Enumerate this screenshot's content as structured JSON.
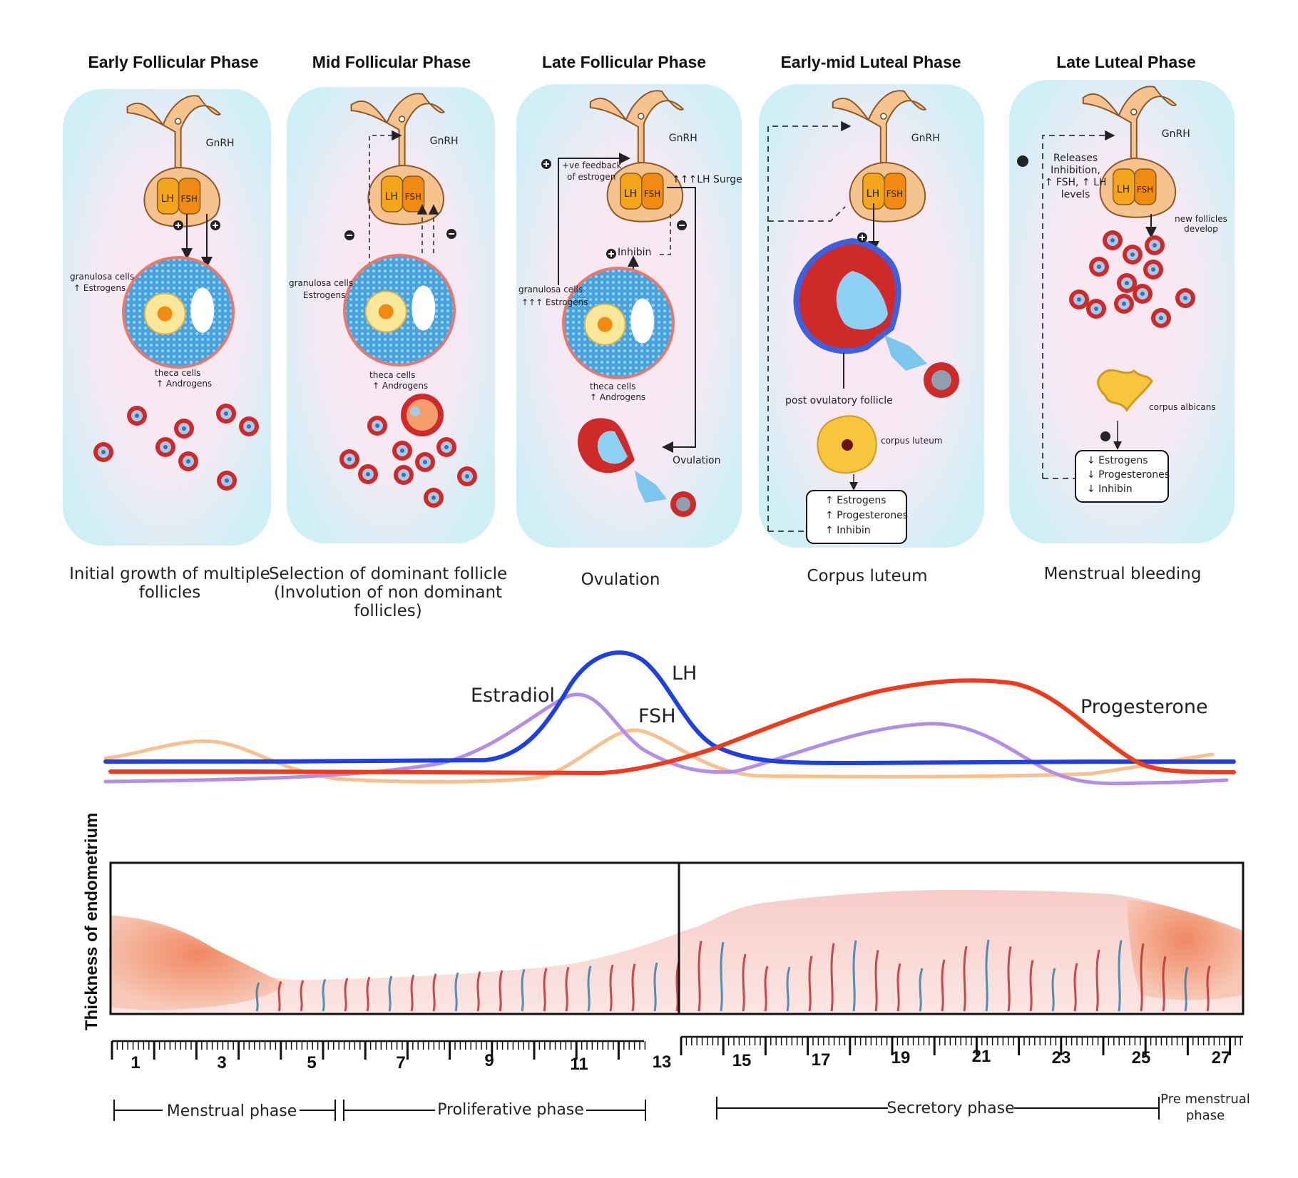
{
  "panels": [
    {
      "title": "Early Follicular Phase",
      "caption": [
        "Initial growth of multiple",
        "follicles"
      ],
      "labels": {
        "gnrh": "GnRH",
        "lh": "LH",
        "fsh": "FSH",
        "granulosa": "granulosa cells",
        "granulosa_sub": "↑ Estrogens",
        "theca": "theca cells",
        "theca_sub": "↑ Androgens"
      }
    },
    {
      "title": "Mid Follicular Phase",
      "caption": [
        "Selection of dominant follicle",
        "(Involution of non dominant",
        "follicles)"
      ],
      "labels": {
        "gnrh": "GnRH",
        "lh": "LH",
        "fsh": "FSH",
        "granulosa": "granulosa cells",
        "granulosa_sub": "Estrogens",
        "theca": "theca cells",
        "theca_sub": "↑ Androgens"
      }
    },
    {
      "title": "Late Follicular Phase",
      "caption": [
        "Ovulation"
      ],
      "labels": {
        "gnrh": "GnRH",
        "lh": "LH",
        "fsh": "FSH",
        "feedback": [
          "+ve feedback",
          "of estrogen"
        ],
        "surge": "↑↑↑LH Surge",
        "inhibin": "Inhibin",
        "granulosa": "granulosa cells",
        "granulosa_sub": "↑↑↑ Estrogens",
        "theca": "theca cells",
        "theca_sub": "↑ Androgens",
        "ovulation": "Ovulation"
      }
    },
    {
      "title": "Early-mid Luteal Phase",
      "caption": [
        "Corpus luteum"
      ],
      "labels": {
        "gnrh": "GnRH",
        "lh": "LH",
        "fsh": "FSH",
        "post": "post ovulatory follicle",
        "corpus": "corpus luteum",
        "box": [
          "↑ Estrogens",
          "↑ Progesterones",
          "↑ Inhibin"
        ]
      }
    },
    {
      "title": "Late Luteal Phase",
      "caption": [
        "Menstrual bleeding"
      ],
      "labels": {
        "gnrh": "GnRH",
        "lh": "LH",
        "fsh": "FSH",
        "releases": [
          "Releases",
          "Inhibition,",
          "↑ FSH, ↑ LH",
          "levels"
        ],
        "newf": [
          "new follicles",
          "develop"
        ],
        "albicans": "corpus albicans",
        "box": [
          "↓ Estrogens",
          "↓ Progesterones",
          "↓ Inhibin"
        ]
      }
    }
  ],
  "hormones": {
    "labels": {
      "estradiol": "Estradiol",
      "lh": "LH",
      "fsh": "FSH",
      "progesterone": "Progesterone"
    },
    "colors": {
      "estradiol": "#b48ee6",
      "lh": "#1f3fe0",
      "fsh": "#f8c08e",
      "progesterone": "#ef3a1c"
    }
  },
  "endometrium": {
    "axis_label": "Thickness of endometrium",
    "day_labels": [
      "1",
      "3",
      "5",
      "7",
      "9",
      "11",
      "13",
      "15",
      "17",
      "19",
      "21",
      "23",
      "25",
      "27"
    ]
  },
  "phases": [
    "Menstrual phase",
    "Proliferative phase",
    "Secretory phase",
    [
      "Pre menstrual",
      "phase"
    ]
  ]
}
